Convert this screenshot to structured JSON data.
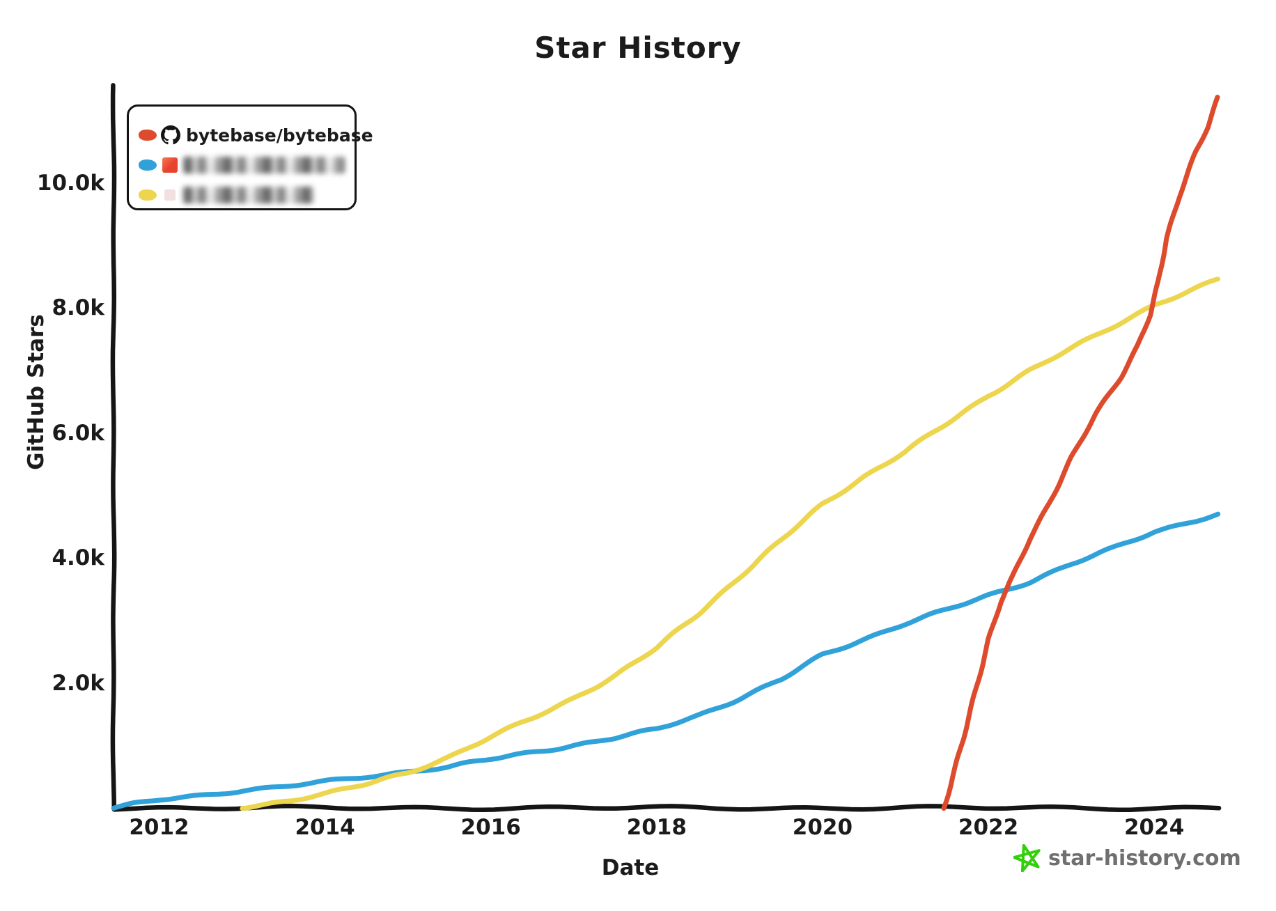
{
  "title": "Star History",
  "y_axis": {
    "label": "GitHub Stars",
    "ticks": [
      "2.0k",
      "4.0k",
      "6.0k",
      "8.0k",
      "10.0k"
    ]
  },
  "x_axis": {
    "label": "Date",
    "ticks": [
      "2012",
      "2014",
      "2016",
      "2018",
      "2020",
      "2022",
      "2024"
    ]
  },
  "legend": {
    "items": [
      {
        "label": "bytebase/bytebase",
        "redacted": false,
        "swatch_color": "#dd4b2c",
        "icon": "github-octocat-icon"
      },
      {
        "label": "",
        "redacted": true,
        "swatch_color": "#31a2d9",
        "icon": "orange-square-avatar"
      },
      {
        "label": "",
        "redacted": true,
        "swatch_color": "#edd54e",
        "icon": "pink-square-avatar"
      }
    ]
  },
  "watermark": {
    "text": "star-history.com",
    "icon": "green-star-icon",
    "star_color": "#33cf0c",
    "text_color": "#6f6f6f"
  },
  "colors": {
    "axis": "#151515",
    "red_series": "#dd4b2c",
    "blue_series": "#31a2d9",
    "yellow_series": "#edd54e"
  },
  "chart_data": {
    "type": "line",
    "title": "Star History",
    "xlabel": "Date",
    "ylabel": "GitHub Stars",
    "xlim": [
      2011.45,
      2024.78
    ],
    "ylim": [
      0,
      11500
    ],
    "x_ticks": [
      2012,
      2014,
      2016,
      2018,
      2020,
      2022,
      2024
    ],
    "y_ticks": [
      2000,
      4000,
      6000,
      8000,
      10000
    ],
    "grid": false,
    "legend_position": "top-left",
    "series": [
      {
        "name": "redacted-blue",
        "color": "#31a2d9",
        "points": [
          [
            2011.45,
            0
          ],
          [
            2011.7,
            60
          ],
          [
            2012,
            130
          ],
          [
            2012.5,
            200
          ],
          [
            2013,
            280
          ],
          [
            2013.5,
            340
          ],
          [
            2014,
            420
          ],
          [
            2014.5,
            500
          ],
          [
            2015,
            580
          ],
          [
            2015.5,
            660
          ],
          [
            2016,
            780
          ],
          [
            2016.5,
            890
          ],
          [
            2017,
            1000
          ],
          [
            2017.5,
            1120
          ],
          [
            2018,
            1260
          ],
          [
            2018.5,
            1480
          ],
          [
            2019,
            1750
          ],
          [
            2019.5,
            2050
          ],
          [
            2020,
            2450
          ],
          [
            2020.5,
            2700
          ],
          [
            2021,
            2950
          ],
          [
            2021.5,
            3170
          ],
          [
            2022,
            3400
          ],
          [
            2022.5,
            3620
          ],
          [
            2023,
            3900
          ],
          [
            2023.5,
            4150
          ],
          [
            2024,
            4420
          ],
          [
            2024.77,
            4700
          ]
        ]
      },
      {
        "name": "redacted-yellow",
        "color": "#edd54e",
        "points": [
          [
            2013.0,
            0
          ],
          [
            2013.3,
            60
          ],
          [
            2013.6,
            130
          ],
          [
            2014,
            230
          ],
          [
            2014.5,
            380
          ],
          [
            2015,
            560
          ],
          [
            2015.5,
            820
          ],
          [
            2016,
            1140
          ],
          [
            2016.5,
            1430
          ],
          [
            2017,
            1750
          ],
          [
            2017.5,
            2120
          ],
          [
            2018,
            2560
          ],
          [
            2018.5,
            3100
          ],
          [
            2019,
            3700
          ],
          [
            2019.5,
            4280
          ],
          [
            2020,
            4860
          ],
          [
            2020.5,
            5300
          ],
          [
            2021,
            5700
          ],
          [
            2021.5,
            6150
          ],
          [
            2022,
            6600
          ],
          [
            2022.5,
            7000
          ],
          [
            2023,
            7350
          ],
          [
            2023.5,
            7700
          ],
          [
            2024,
            8050
          ],
          [
            2024.77,
            8450
          ]
        ]
      },
      {
        "name": "bytebase/bytebase",
        "color": "#dd4b2c",
        "points": [
          [
            2021.46,
            0
          ],
          [
            2021.55,
            400
          ],
          [
            2021.7,
            1100
          ],
          [
            2021.85,
            1900
          ],
          [
            2022.0,
            2700
          ],
          [
            2022.15,
            3300
          ],
          [
            2022.3,
            3700
          ],
          [
            2022.5,
            4300
          ],
          [
            2022.7,
            4800
          ],
          [
            2023.0,
            5600
          ],
          [
            2023.3,
            6300
          ],
          [
            2023.6,
            6900
          ],
          [
            2023.8,
            7400
          ],
          [
            2023.95,
            7900
          ],
          [
            2024.05,
            8400
          ],
          [
            2024.15,
            9100
          ],
          [
            2024.3,
            9800
          ],
          [
            2024.5,
            10500
          ],
          [
            2024.65,
            10900
          ],
          [
            2024.77,
            11350
          ]
        ]
      }
    ]
  }
}
